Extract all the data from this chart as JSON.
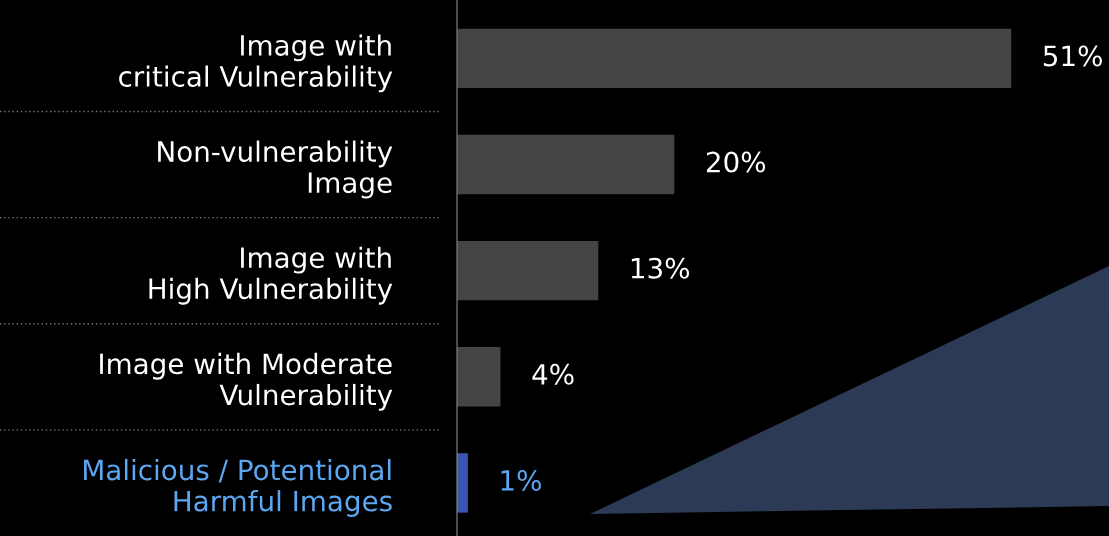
{
  "chart_data": {
    "type": "bar",
    "orientation": "horizontal",
    "categories": [
      "Image with\ncritical Vulnerability",
      "Non-vulnerability\nImage",
      "Image with\nHigh Vulnerability",
      "Image with Moderate\nVulnerability",
      "Malicious / Potentional\nHarmful Images"
    ],
    "values": [
      51,
      20,
      13,
      4,
      1
    ],
    "colors": [
      "#444444",
      "#444444",
      "#444444",
      "#444444",
      "#3a56b0"
    ],
    "value_labels": [
      "51%",
      "20%",
      "13%",
      "4%",
      "1%"
    ],
    "xlim": [
      0,
      60
    ],
    "tick_labels": "y",
    "grid": false,
    "legend": false
  }
}
